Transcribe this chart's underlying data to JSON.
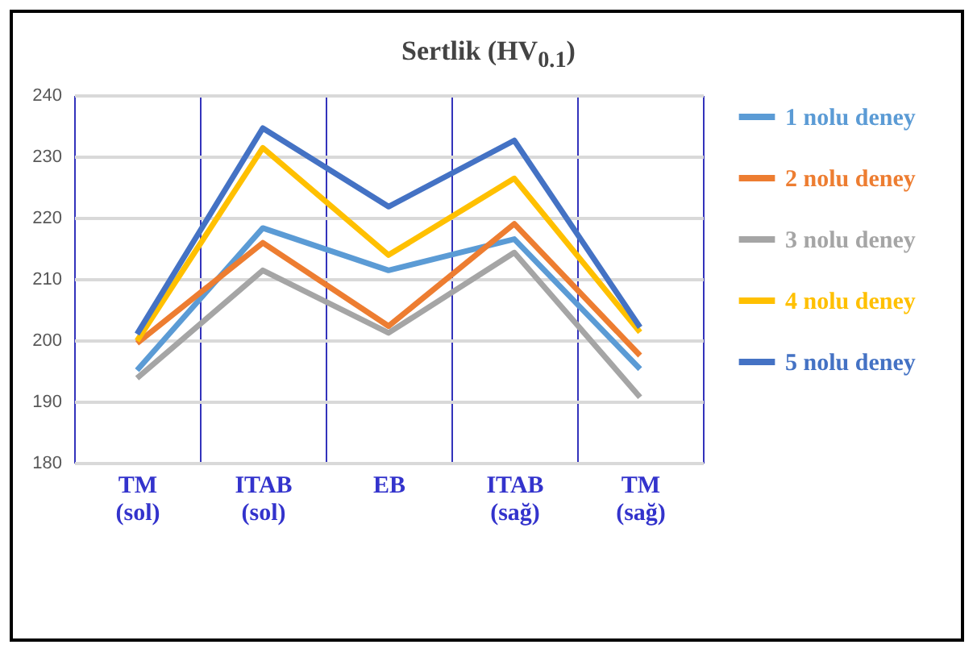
{
  "chart_data": {
    "type": "line",
    "title": "Sertlik (HV$_{0.1}$)",
    "categories": [
      "TM (sol)",
      "ITAB (sol)",
      "EB",
      "ITAB (sağ)",
      "TM (sağ)"
    ],
    "series": [
      {
        "name": "1 nolu deney",
        "color": "#5b9bd5",
        "values": [
          195.1,
          218.3,
          211.4,
          216.5,
          195.3
        ]
      },
      {
        "name": "2 nolu deney",
        "color": "#ed7d31",
        "values": [
          199.5,
          215.9,
          202.3,
          219.0,
          197.5
        ]
      },
      {
        "name": "3 nolu deney",
        "color": "#a5a5a5",
        "values": [
          193.8,
          211.4,
          201.2,
          214.3,
          190.7
        ]
      },
      {
        "name": "4 nolu deney",
        "color": "#ffc000",
        "values": [
          199.9,
          231.4,
          213.9,
          226.4,
          201.3
        ]
      },
      {
        "name": "5 nolu deney",
        "color": "#4472c4",
        "values": [
          201.0,
          234.6,
          221.8,
          232.6,
          202.1
        ]
      }
    ],
    "ylim": [
      180,
      240
    ],
    "yticks": [
      180,
      190,
      200,
      210,
      220,
      230,
      240
    ],
    "grid": true,
    "legend": "right",
    "marker": "none",
    "line_style": "solid"
  }
}
